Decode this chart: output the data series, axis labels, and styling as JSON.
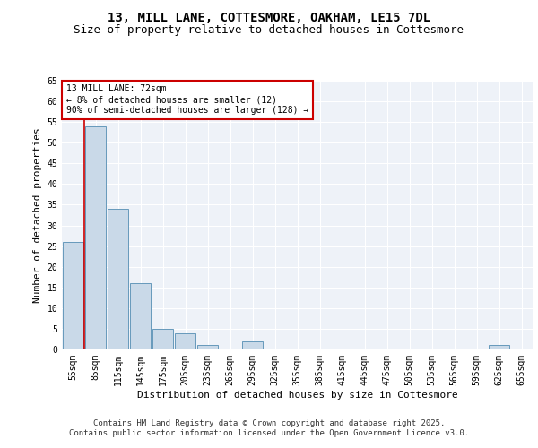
{
  "title_line1": "13, MILL LANE, COTTESMORE, OAKHAM, LE15 7DL",
  "title_line2": "Size of property relative to detached houses in Cottesmore",
  "xlabel": "Distribution of detached houses by size in Cottesmore",
  "ylabel": "Number of detached properties",
  "categories": [
    "55sqm",
    "85sqm",
    "115sqm",
    "145sqm",
    "175sqm",
    "205sqm",
    "235sqm",
    "265sqm",
    "295sqm",
    "325sqm",
    "355sqm",
    "385sqm",
    "415sqm",
    "445sqm",
    "475sqm",
    "505sqm",
    "535sqm",
    "565sqm",
    "595sqm",
    "625sqm",
    "655sqm"
  ],
  "values": [
    26,
    54,
    34,
    16,
    5,
    4,
    1,
    0,
    2,
    0,
    0,
    0,
    0,
    0,
    0,
    0,
    0,
    0,
    0,
    1,
    0
  ],
  "bar_color": "#c9d9e8",
  "bar_edge_color": "#6699bb",
  "vline_color": "#cc0000",
  "vline_x_index": 0.5,
  "ylim": [
    0,
    65
  ],
  "yticks": [
    0,
    5,
    10,
    15,
    20,
    25,
    30,
    35,
    40,
    45,
    50,
    55,
    60,
    65
  ],
  "annotation_text": "13 MILL LANE: 72sqm\n← 8% of detached houses are smaller (12)\n90% of semi-detached houses are larger (128) →",
  "annotation_box_color": "#ffffff",
  "annotation_box_edge": "#cc0000",
  "footer_line1": "Contains HM Land Registry data © Crown copyright and database right 2025.",
  "footer_line2": "Contains public sector information licensed under the Open Government Licence v3.0.",
  "bg_color": "#eef2f8",
  "grid_color": "#ffffff",
  "title_fontsize": 10,
  "subtitle_fontsize": 9,
  "axis_label_fontsize": 8,
  "tick_fontsize": 7,
  "footer_fontsize": 6.5,
  "annotation_fontsize": 7
}
